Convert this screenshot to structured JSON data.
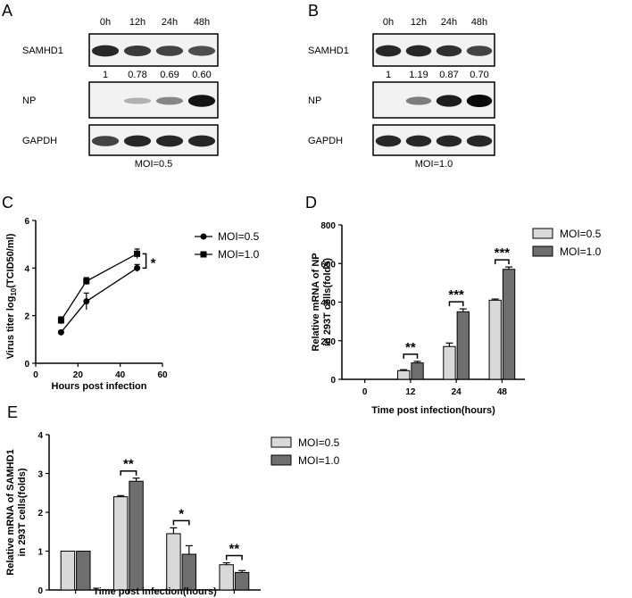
{
  "panels": {
    "A": {
      "label": "A",
      "times": [
        "0h",
        "12h",
        "24h",
        "48h"
      ],
      "rows": [
        "SAMHD1",
        "NP",
        "GAPDH"
      ],
      "quant": [
        "1",
        "0.78",
        "0.69",
        "0.60"
      ],
      "caption": "MOI=0.5",
      "band_intensity": {
        "SAMHD1": [
          0.85,
          0.75,
          0.7,
          0.65
        ],
        "NP": [
          0.0,
          0.12,
          0.35,
          0.95
        ],
        "GAPDH": [
          0.7,
          0.85,
          0.85,
          0.85
        ]
      }
    },
    "B": {
      "label": "B",
      "times": [
        "0h",
        "12h",
        "24h",
        "48h"
      ],
      "rows": [
        "SAMHD1",
        "NP",
        "GAPDH"
      ],
      "quant": [
        "1",
        "1.19",
        "0.87",
        "0.70"
      ],
      "caption": "MOI=1.0",
      "band_intensity": {
        "SAMHD1": [
          0.85,
          0.85,
          0.8,
          0.7
        ],
        "NP": [
          0.0,
          0.4,
          0.9,
          1.0
        ],
        "GAPDH": [
          0.85,
          0.85,
          0.85,
          0.85
        ]
      }
    }
  },
  "chart_data": [
    {
      "id": "C",
      "panel_label": "C",
      "type": "line",
      "xlabel": "Hours post infection",
      "ylabel_main": "Virus titer log",
      "ylabel_sub": "10",
      "ylabel_tail": "(TCID50/ml)",
      "xlim": [
        0,
        60
      ],
      "ylim": [
        0,
        6
      ],
      "xticks": [
        0,
        20,
        40,
        60
      ],
      "yticks": [
        0,
        2,
        4,
        6
      ],
      "series": [
        {
          "name": "MOI=0.5",
          "marker": "circle",
          "x": [
            12,
            24,
            48
          ],
          "y": [
            1.3,
            2.6,
            4.0
          ],
          "err": [
            0.08,
            0.35,
            0.15
          ]
        },
        {
          "name": "MOI=1.0",
          "marker": "square",
          "x": [
            12,
            24,
            48
          ],
          "y": [
            1.8,
            3.45,
            4.6
          ],
          "err": [
            0.15,
            0.15,
            0.2
          ]
        }
      ],
      "annotation": "*"
    },
    {
      "id": "D",
      "panel_label": "D",
      "type": "bar",
      "ylabel_line1": "Relative mRNA of  NP",
      "ylabel_line2": "in 293T cells(folds)",
      "xlabel": "Time post infection(hours)",
      "categories": [
        "0",
        "12",
        "24",
        "48"
      ],
      "ylim": [
        0,
        800
      ],
      "yticks": [
        0,
        200,
        400,
        600,
        800
      ],
      "series": [
        {
          "name": "MOI=0.5",
          "color": "#d9d9d9",
          "values": [
            0,
            45,
            170,
            410
          ],
          "err": [
            0,
            5,
            18,
            6
          ]
        },
        {
          "name": "MOI=1.0",
          "color": "#6e6e6e",
          "values": [
            0,
            85,
            350,
            570
          ],
          "err": [
            0,
            8,
            15,
            12
          ]
        }
      ],
      "significance": [
        "",
        "**",
        "***",
        "***"
      ]
    },
    {
      "id": "E",
      "panel_label": "E",
      "type": "bar",
      "ylabel_line1": "Relative mRNA of  SAMHD1",
      "ylabel_line2": "in 293T cells(folds)",
      "xlabel": "Time post infection(hours)",
      "categories": [
        "0",
        "12",
        "24",
        "48"
      ],
      "ylim": [
        0,
        4
      ],
      "yticks": [
        0,
        1,
        2,
        3,
        4
      ],
      "series": [
        {
          "name": "MOI=0.5",
          "color": "#d9d9d9",
          "values": [
            1.0,
            2.4,
            1.45,
            0.65
          ],
          "err": [
            0,
            0.03,
            0.15,
            0.05
          ]
        },
        {
          "name": "MOI=1.0",
          "color": "#6e6e6e",
          "values": [
            1.0,
            2.8,
            0.92,
            0.45
          ],
          "err": [
            0,
            0.08,
            0.22,
            0.05
          ]
        }
      ],
      "significance": [
        "",
        "**",
        "*",
        "**"
      ]
    }
  ]
}
